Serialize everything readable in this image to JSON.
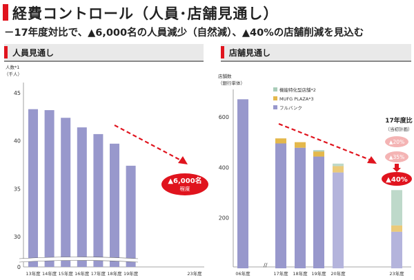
{
  "header": {
    "title": "経費コントロール（人員･店舗見通し）",
    "subtitle": "－17年度対比で、▲6,000名の人員減少（自然減）、▲40%の店舗削減を見込む"
  },
  "colors": {
    "accent": "#e0141e",
    "bar": "#9898cc",
    "bar_future": "#b4b4dc",
    "mufg_plaza": "#e4b84c",
    "specialized": "#a8ccb8"
  },
  "chart_data": [
    {
      "type": "bar",
      "section_title": "人員見通し",
      "ylabel": "人数*1",
      "ylabel_unit": "（千人）",
      "ylim": [
        0,
        45
      ],
      "y_ticks": [
        "0",
        "30",
        "35",
        "40",
        "45"
      ],
      "axis_break": true,
      "categories": [
        "13年度",
        "14年度",
        "15年度",
        "16年度",
        "17年度",
        "18年度",
        "19年度",
        "23年度"
      ],
      "values": [
        43.3,
        43.2,
        42.4,
        41.4,
        40.7,
        39.7,
        37.4,
        null
      ],
      "annotation": {
        "line1": "▲6,000名",
        "line2": "程度"
      }
    },
    {
      "type": "bar",
      "section_title": "店舗見通し",
      "ylabel": "店舗数",
      "ylabel_unit": "（銀行単体）",
      "ylim": [
        0,
        700
      ],
      "y_ticks": [
        "200",
        "400",
        "600"
      ],
      "axis_break": true,
      "categories": [
        "06年度",
        "17年度",
        "18年度",
        "19年度",
        "20年度",
        "23年度"
      ],
      "series": [
        {
          "name": "フルバンク",
          "values": [
            670,
            495,
            478,
            443,
            380,
            145
          ]
        },
        {
          "name": "MUFG PLAZA*3",
          "values": [
            0,
            20,
            22,
            20,
            25,
            25
          ]
        },
        {
          "name": "機能特化型店舗*2",
          "values": [
            0,
            0,
            0,
            5,
            10,
            140
          ]
        }
      ],
      "annotation": {
        "header": "17年度比",
        "subheader": "（当初計画）",
        "step1": "▲20%",
        "step2": "▲35%",
        "final": "▲40%"
      }
    }
  ]
}
